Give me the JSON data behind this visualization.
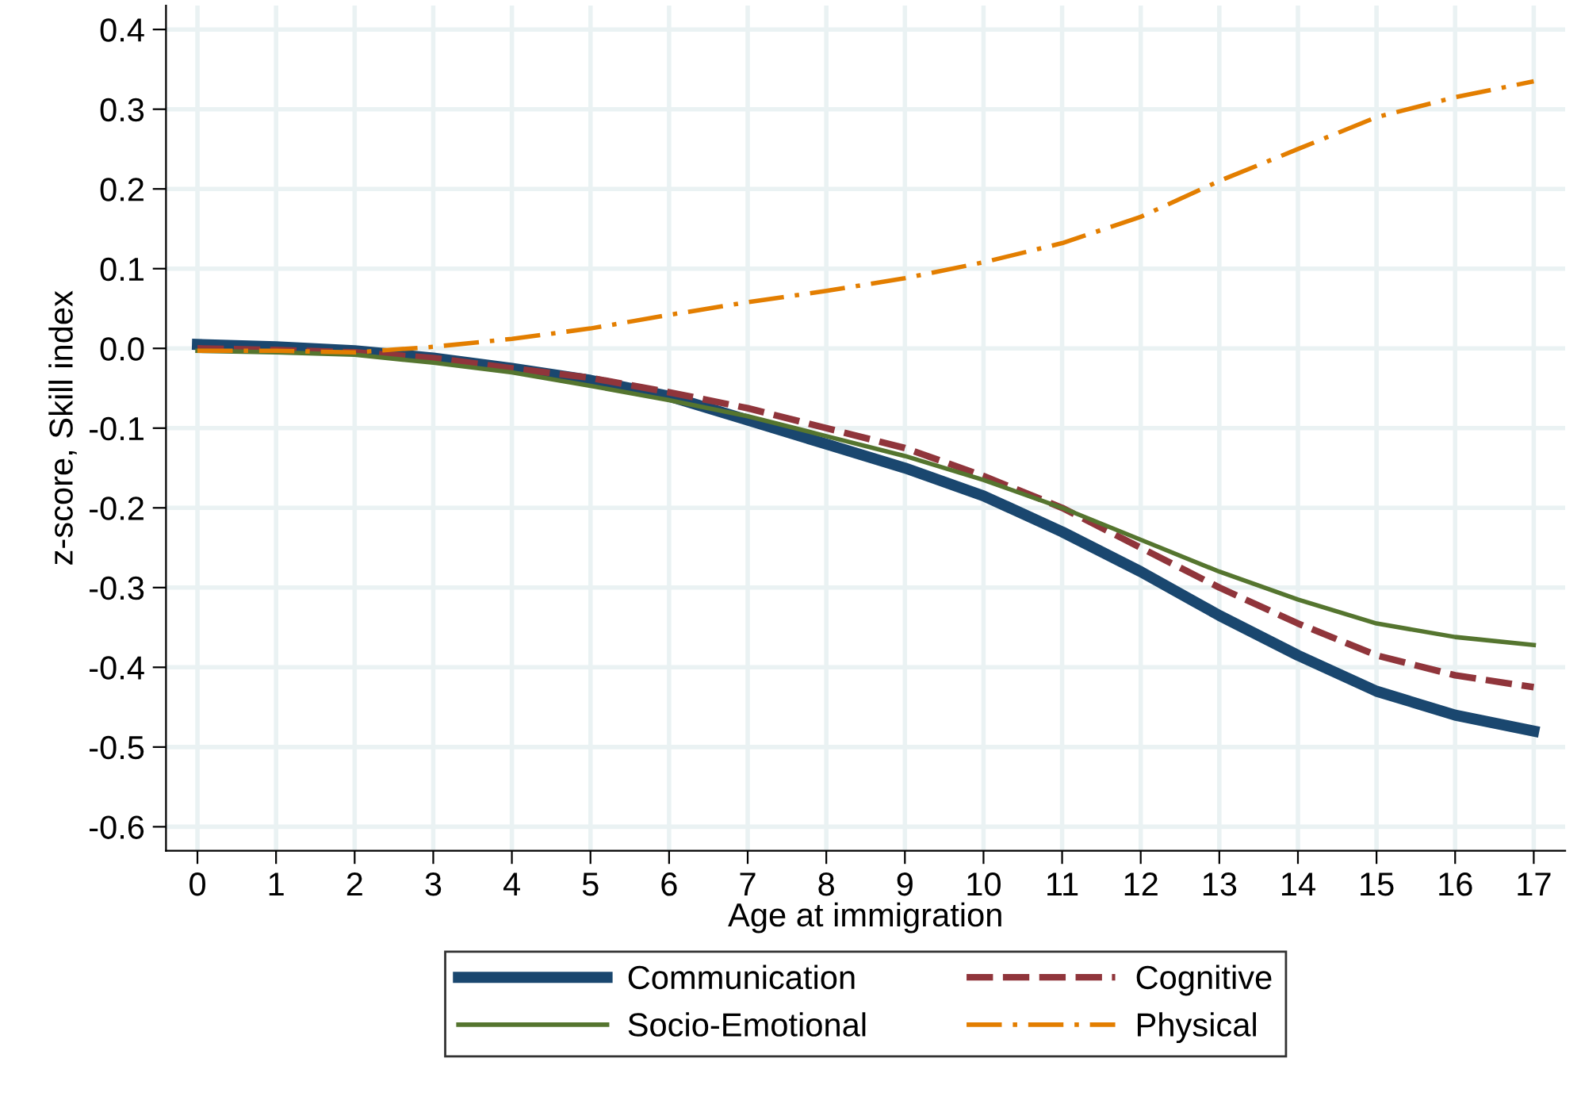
{
  "chart_data": {
    "type": "line",
    "xlabel": "Age at immigration",
    "ylabel": "z-score, Skill index",
    "x": [
      0,
      1,
      2,
      3,
      4,
      5,
      6,
      7,
      8,
      9,
      10,
      11,
      12,
      13,
      14,
      15,
      16,
      17
    ],
    "series": [
      {
        "name": "Communication",
        "color": "#1a476f",
        "line_style": "solid",
        "values": [
          0.005,
          0.002,
          -0.003,
          -0.012,
          -0.025,
          -0.04,
          -0.06,
          -0.09,
          -0.12,
          -0.15,
          -0.185,
          -0.23,
          -0.28,
          -0.335,
          -0.385,
          -0.43,
          -0.46,
          -0.48
        ]
      },
      {
        "name": "Cognitive",
        "color": "#90353b",
        "line_style": "dashed",
        "values": [
          0.0,
          -0.002,
          -0.005,
          -0.012,
          -0.025,
          -0.037,
          -0.055,
          -0.075,
          -0.1,
          -0.125,
          -0.16,
          -0.2,
          -0.25,
          -0.3,
          -0.345,
          -0.385,
          -0.41,
          -0.425
        ]
      },
      {
        "name": "Socio-Emotional",
        "color": "#55752f",
        "line_style": "solid",
        "values": [
          -0.003,
          -0.005,
          -0.008,
          -0.018,
          -0.03,
          -0.047,
          -0.065,
          -0.085,
          -0.11,
          -0.135,
          -0.165,
          -0.2,
          -0.24,
          -0.28,
          -0.315,
          -0.345,
          -0.362,
          -0.372
        ]
      },
      {
        "name": "Physical",
        "color": "#e37e00",
        "line_style": "dashdot",
        "values": [
          -0.003,
          -0.003,
          -0.005,
          0.002,
          0.012,
          0.025,
          0.042,
          0.058,
          0.072,
          0.088,
          0.108,
          0.132,
          0.165,
          0.21,
          0.25,
          0.29,
          0.315,
          0.335
        ]
      }
    ],
    "xlim": [
      -0.4,
      17.4
    ],
    "xticks": [
      0,
      1,
      2,
      3,
      4,
      5,
      6,
      7,
      8,
      9,
      10,
      11,
      12,
      13,
      14,
      15,
      16,
      17
    ],
    "ylim": [
      -0.63,
      0.43
    ],
    "yticks": [
      {
        "value": -0.6,
        "label": "-0.6"
      },
      {
        "value": -0.5,
        "label": "-0.5"
      },
      {
        "value": -0.4,
        "label": "-0.4"
      },
      {
        "value": -0.3,
        "label": "-0.3"
      },
      {
        "value": -0.2,
        "label": "-0.2"
      },
      {
        "value": -0.1,
        "label": "-0.1"
      },
      {
        "value": 0,
        "label": "0.0"
      },
      {
        "value": 0.1,
        "label": "0.1"
      },
      {
        "value": 0.2,
        "label": "0.2"
      },
      {
        "value": 0.3,
        "label": "0.3"
      },
      {
        "value": 0.4,
        "label": "0.4"
      }
    ],
    "grid": true,
    "legend": "bottom"
  }
}
